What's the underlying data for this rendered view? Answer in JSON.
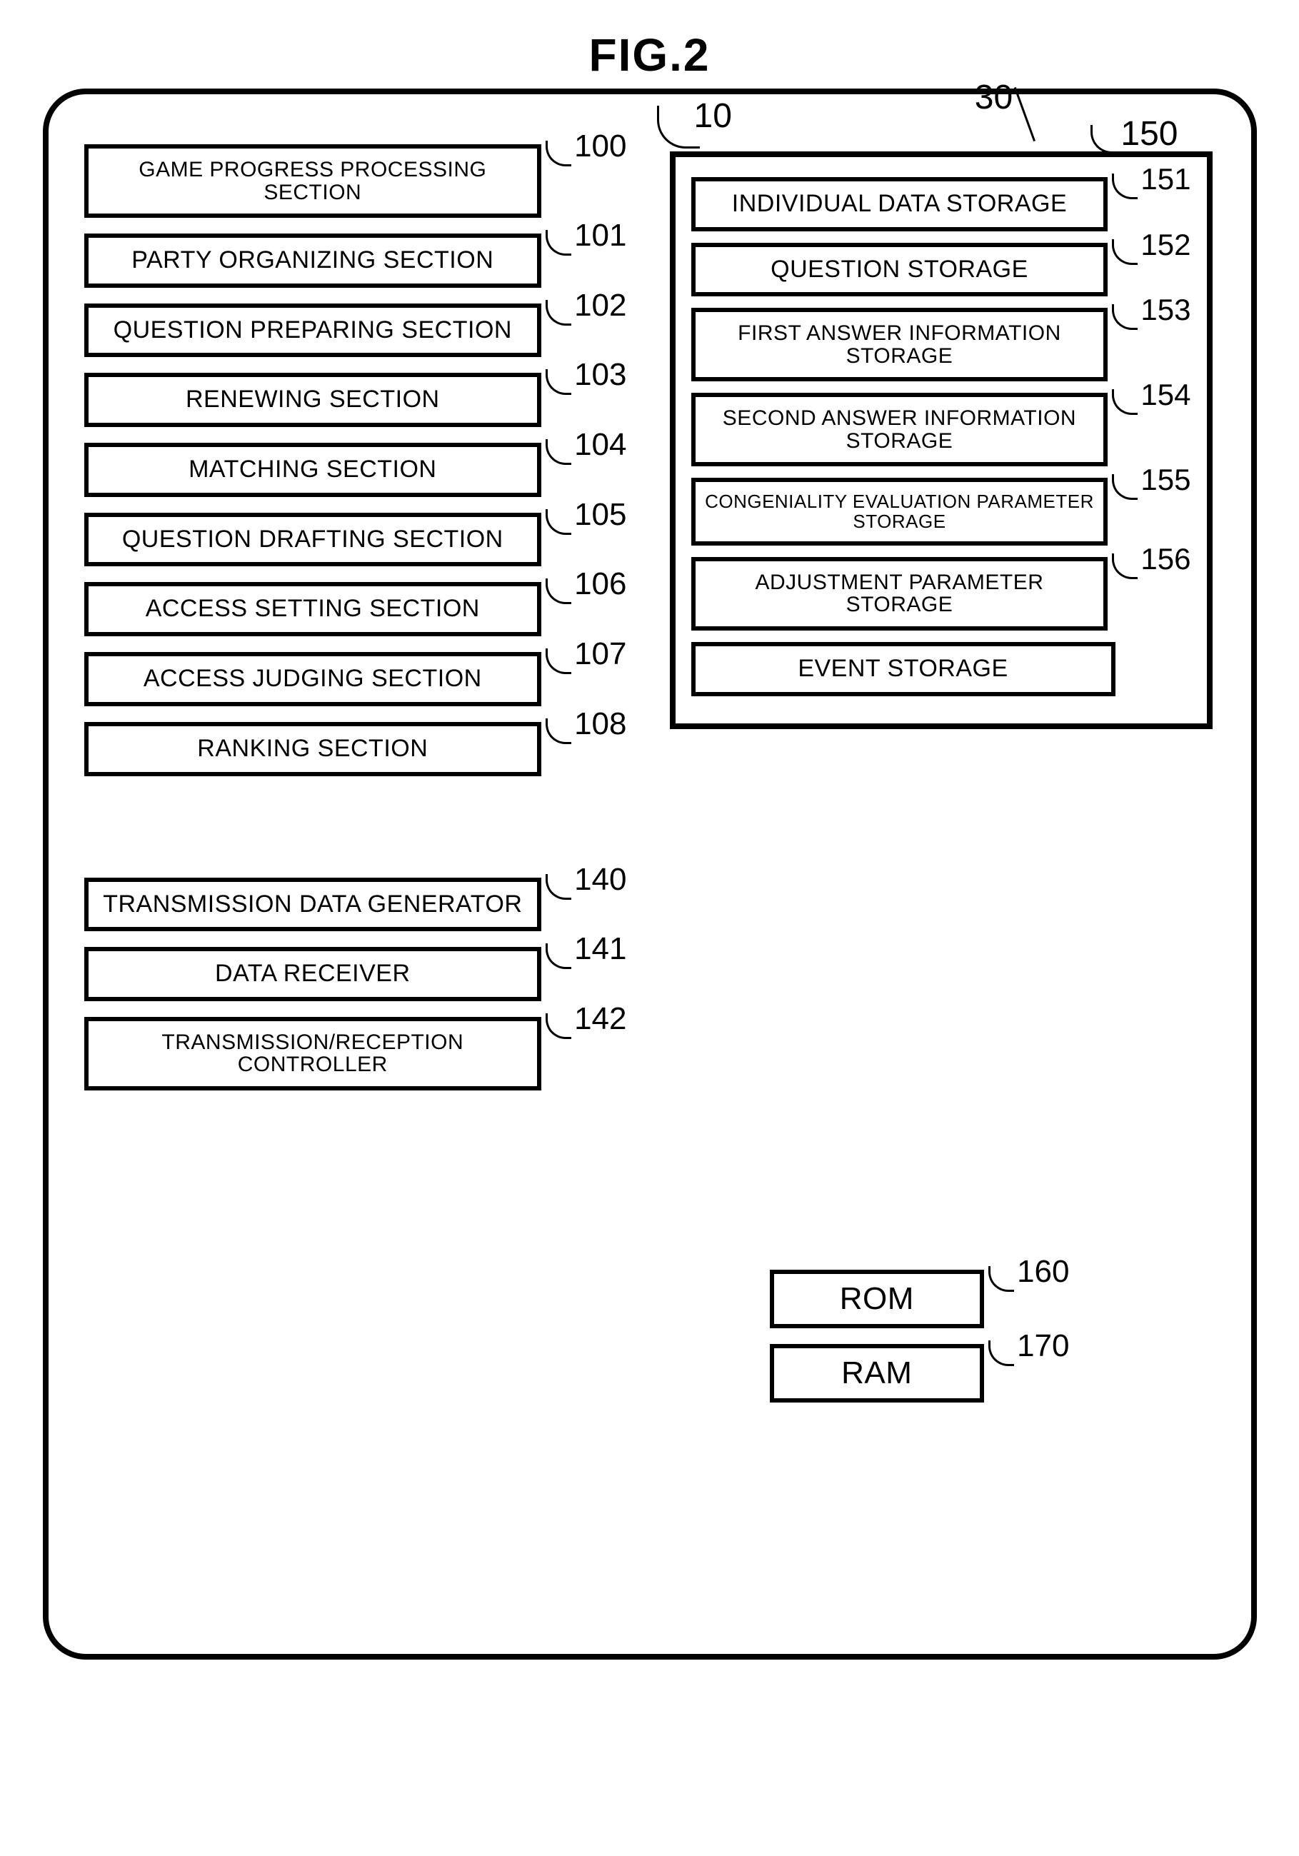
{
  "figure_title": "FIG.2",
  "outer_ref": "10",
  "storage_group_ref": "30",
  "storage_container_ref": "150",
  "left_blocks": [
    {
      "label": "GAME PROGRESS PROCESSING SECTION",
      "ref": "100",
      "size": "med-text"
    },
    {
      "label": "PARTY ORGANIZING SECTION",
      "ref": "101",
      "size": ""
    },
    {
      "label": "QUESTION PREPARING SECTION",
      "ref": "102",
      "size": ""
    },
    {
      "label": "RENEWING SECTION",
      "ref": "103",
      "size": ""
    },
    {
      "label": "MATCHING SECTION",
      "ref": "104",
      "size": ""
    },
    {
      "label": "QUESTION DRAFTING SECTION",
      "ref": "105",
      "size": ""
    },
    {
      "label": "ACCESS SETTING SECTION",
      "ref": "106",
      "size": ""
    },
    {
      "label": "ACCESS JUDGING SECTION",
      "ref": "107",
      "size": ""
    },
    {
      "label": "RANKING SECTION",
      "ref": "108",
      "size": ""
    }
  ],
  "left_blocks_2": [
    {
      "label": "TRANSMISSION DATA GENERATOR",
      "ref": "140",
      "size": ""
    },
    {
      "label": "DATA RECEIVER",
      "ref": "141",
      "size": ""
    },
    {
      "label": "TRANSMISSION/RECEPTION CONTROLLER",
      "ref": "142",
      "size": "med-text"
    }
  ],
  "storage_blocks": [
    {
      "label": "INDIVIDUAL DATA STORAGE",
      "ref": "151",
      "size": ""
    },
    {
      "label": "QUESTION STORAGE",
      "ref": "152",
      "size": ""
    },
    {
      "label": "FIRST ANSWER INFORMATION STORAGE",
      "ref": "153",
      "size": "med-text"
    },
    {
      "label": "SECOND ANSWER INFORMATION STORAGE",
      "ref": "154",
      "size": "med-text"
    },
    {
      "label": "CONGENIALITY EVALUATION PARAMETER STORAGE",
      "ref": "155",
      "size": "small-text"
    },
    {
      "label": "ADJUSTMENT PARAMETER STORAGE",
      "ref": "156",
      "size": "med-text"
    },
    {
      "label": "EVENT STORAGE",
      "ref": "",
      "size": ""
    }
  ],
  "rom_label": "ROM",
  "rom_ref": "160",
  "ram_label": "RAM",
  "ram_ref": "170",
  "colors": {
    "stroke": "#000000",
    "bg": "#ffffff"
  }
}
